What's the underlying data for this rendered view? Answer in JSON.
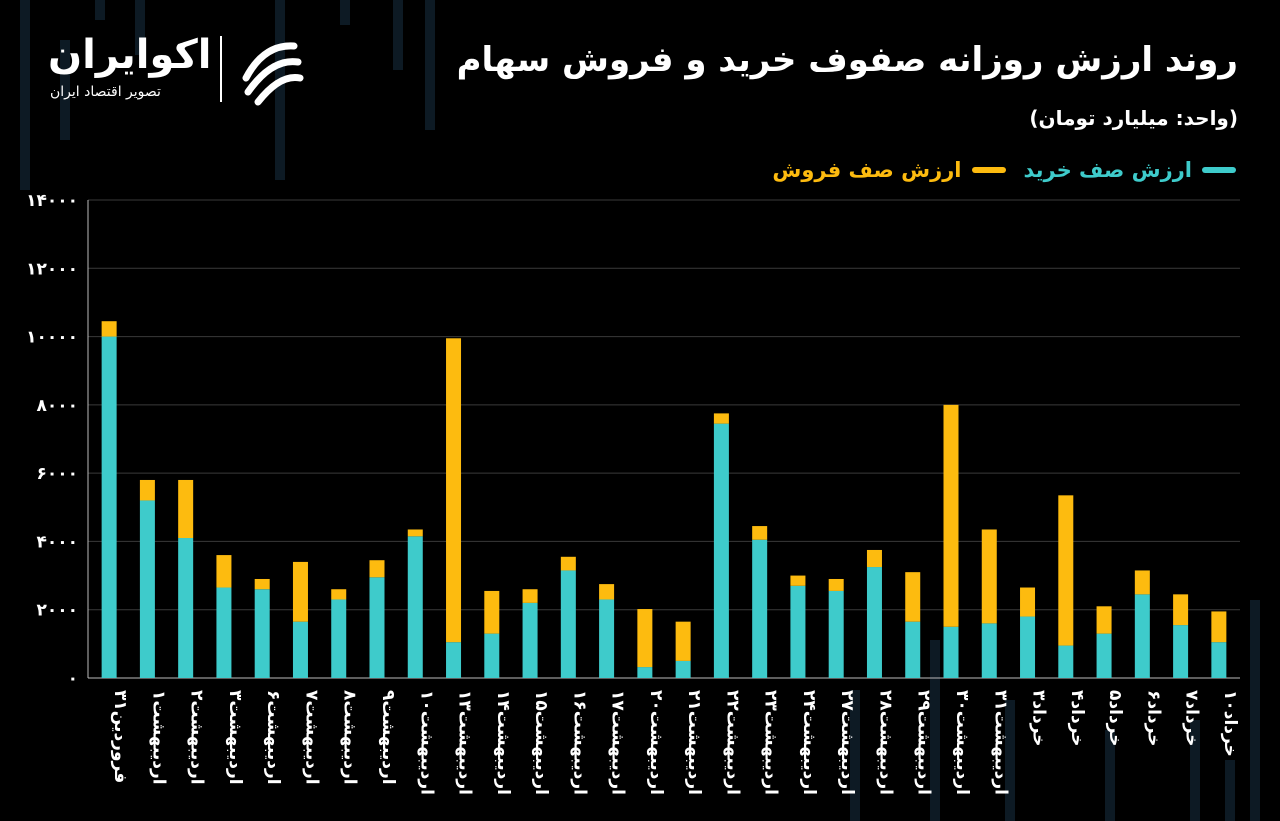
{
  "header": {
    "title": "روند ارزش روزانه صفوف خرید و فروش سهام",
    "subtitle": "(واحد: میلیارد تومان)"
  },
  "logo": {
    "name": "اکوایران",
    "tagline": "تصویر اقتصاد ایران",
    "mark_icon": "ecoiran-swirl-logo"
  },
  "colors": {
    "background": "#000000",
    "buy": "#3ECBCB",
    "sell": "#FDBB0F",
    "grid": "#3a3a3a",
    "text": "#ffffff"
  },
  "chart_data": {
    "type": "bar",
    "stacked": true,
    "categories": [
      "فروردین۳۱",
      "اردیبهشت۱",
      "اردیبهشت۲",
      "اردیبهشت۳",
      "اردیبهشت۶",
      "اردیبهشت۷",
      "اردیبهشت۸",
      "اردیبهشت۹",
      "اردیبهشت۱۰",
      "اردیبهشت۱۳",
      "اردیبهشت۱۴",
      "اردیبهشت۱۵",
      "اردیبهشت۱۶",
      "اردیبهشت۱۷",
      "اردیبهشت۲۰",
      "اردیبهشت۲۱",
      "اردیبهشت۲۲",
      "اردیبهشت۲۳",
      "اردیبهشت۲۴",
      "اردیبهشت۲۷",
      "اردیبهشت۲۸",
      "اردیبهشت۲۹",
      "اردیبهشت۳۰",
      "اردیبهشت۳۱",
      "خرداد۳",
      "خرداد۴",
      "خرداد۵",
      "خرداد۶",
      "خرداد۷",
      "خرداد۱۰"
    ],
    "series": [
      {
        "name": "ارزش صف خرید",
        "color": "#3ECBCB",
        "values": [
          10000,
          5200,
          4100,
          2650,
          2600,
          1650,
          2300,
          2950,
          4150,
          1050,
          1300,
          2200,
          3150,
          2300,
          320,
          500,
          7450,
          4050,
          2700,
          2550,
          3250,
          1650,
          1500,
          1600,
          1800,
          950,
          1300,
          2450,
          1550,
          1050
        ]
      },
      {
        "name": "ارزش صف فروش",
        "color": "#FDBB0F",
        "values": [
          450,
          600,
          1700,
          950,
          300,
          1750,
          300,
          500,
          200,
          8900,
          1250,
          400,
          400,
          450,
          1700,
          1150,
          300,
          400,
          300,
          350,
          500,
          1450,
          6500,
          2750,
          850,
          4400,
          800,
          700,
          900,
          900
        ]
      }
    ],
    "ylim": [
      0,
      14000
    ],
    "yticks": [
      0,
      2000,
      4000,
      6000,
      8000,
      10000,
      12000,
      14000
    ],
    "ytick_labels": [
      "۰",
      "۲۰۰۰",
      "۴۰۰۰",
      "۶۰۰۰",
      "۸۰۰۰",
      "۱۰۰۰۰",
      "۱۲۰۰۰",
      "۱۴۰۰۰"
    ],
    "grid": true,
    "legend_position": "top-right"
  }
}
